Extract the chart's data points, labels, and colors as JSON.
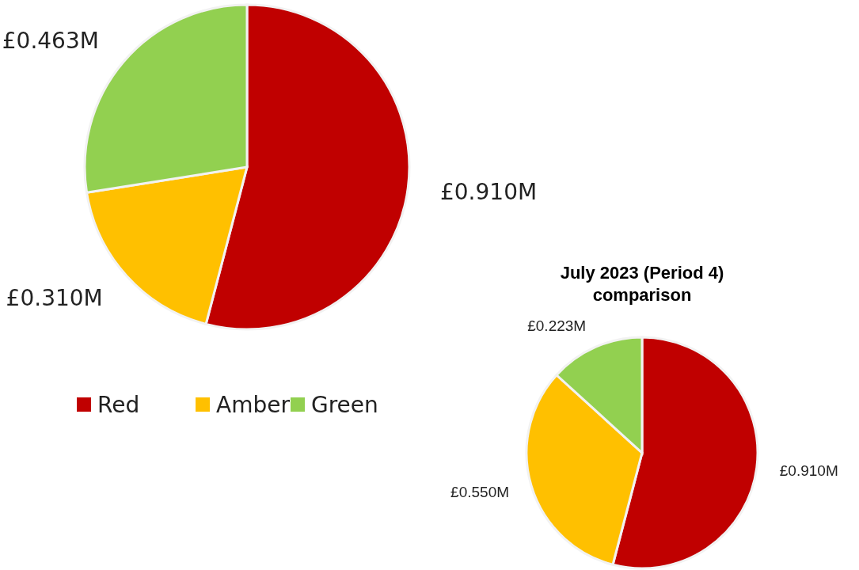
{
  "chart_data": [
    {
      "type": "pie",
      "categories": [
        "Red",
        "Amber",
        "Green"
      ],
      "values": [
        0.91,
        0.31,
        0.463
      ],
      "colors": [
        "#c00000",
        "#ffc000",
        "#92d050"
      ],
      "value_labels": [
        "£0.910M",
        "£0.310M",
        "£0.463M"
      ],
      "legend": "bottom"
    },
    {
      "type": "pie",
      "title": "July 2023 (Period 4) comparison",
      "categories": [
        null,
        null,
        null
      ],
      "values": [
        0.91,
        0.55,
        0.223
      ],
      "colors": [
        "#c00000",
        "#ffc000",
        "#92d050"
      ],
      "value_labels": [
        "£0.910M",
        "£0.550M",
        "£0.223M"
      ]
    }
  ]
}
